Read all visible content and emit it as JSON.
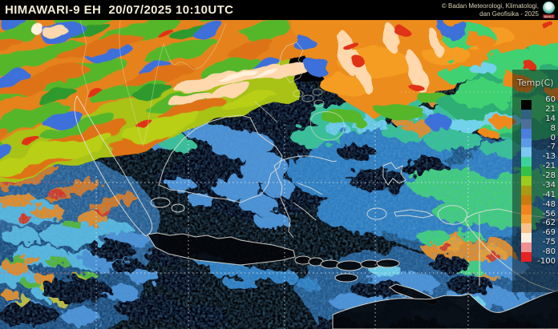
{
  "header": {
    "title": "HIMAWARI-9 EH  20/07/2025 10:10UTC",
    "attribution_line1": "© Badan Meteorologi, Klimatologi,",
    "attribution_line2": "dan Geofisika -  2025",
    "logo_label": "BMKG"
  },
  "legend": {
    "title": "Temp(C)",
    "ticks": [
      "60",
      "21",
      "14",
      "8",
      "0",
      "-7",
      "-13",
      "-21",
      "-28",
      "-34",
      "-41",
      "-48",
      "-56",
      "-62",
      "-69",
      "-75",
      "-80",
      "-100"
    ],
    "segment_colors": [
      "#000000",
      "#31627f",
      "#4d6f9a",
      "#4c7ee0",
      "#5c9ae8",
      "#7cc8ee",
      "#3ed29b",
      "#35c146",
      "#9ccb1d",
      "#ab9a12",
      "#c87c0e",
      "#f5831c",
      "#f5a032",
      "#f8c08a",
      "#fdeedd",
      "#f09090",
      "#e62222"
    ]
  }
}
